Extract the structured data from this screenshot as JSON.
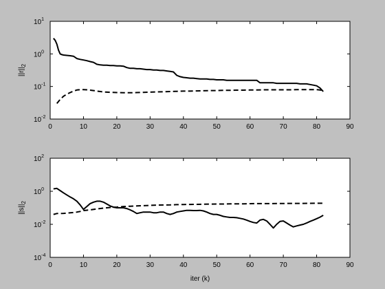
{
  "figure": {
    "background": "#c0c0c0",
    "axes_background": "#ffffff"
  },
  "chart_data": [
    {
      "type": "line",
      "title": "",
      "xlabel": "",
      "ylabel": "||r||",
      "ylabel_subscript": "2",
      "yscale": "log",
      "xlim": [
        0,
        90
      ],
      "ylim_exp": [
        -2,
        1
      ],
      "xticks": [
        "0",
        "10",
        "20",
        "30",
        "40",
        "50",
        "60",
        "70",
        "80",
        "90"
      ],
      "yticks": [
        {
          "base": "10",
          "exp": "-2"
        },
        {
          "base": "10",
          "exp": "-1"
        },
        {
          "base": "10",
          "exp": "0"
        },
        {
          "base": "10",
          "exp": "1"
        }
      ],
      "grid": false,
      "series": [
        {
          "style": "solid",
          "x": [
            1,
            1.5,
            2,
            2.5,
            3,
            3.5,
            4,
            5,
            6,
            7,
            8,
            9,
            10,
            11,
            12,
            13,
            14,
            15,
            16,
            17,
            18,
            19,
            20,
            21,
            22,
            23,
            24,
            25,
            26,
            27,
            28,
            29,
            30,
            31,
            32,
            33,
            34,
            35,
            36,
            37,
            38,
            39,
            40,
            41,
            42,
            43,
            44,
            45,
            46,
            47,
            48,
            49,
            50,
            51,
            52,
            53,
            54,
            55,
            56,
            57,
            58,
            59,
            60,
            61,
            62,
            63,
            64,
            65,
            66,
            67,
            68,
            69,
            70,
            71,
            72,
            73,
            74,
            75,
            76,
            77,
            78,
            79,
            80,
            81,
            82
          ],
          "y": [
            3.0,
            2.6,
            2.0,
            1.3,
            1.0,
            0.95,
            0.92,
            0.9,
            0.88,
            0.85,
            0.72,
            0.68,
            0.65,
            0.62,
            0.58,
            0.55,
            0.48,
            0.46,
            0.45,
            0.45,
            0.44,
            0.44,
            0.43,
            0.43,
            0.42,
            0.38,
            0.36,
            0.36,
            0.35,
            0.35,
            0.34,
            0.33,
            0.33,
            0.32,
            0.32,
            0.31,
            0.31,
            0.3,
            0.29,
            0.28,
            0.22,
            0.2,
            0.19,
            0.185,
            0.18,
            0.18,
            0.175,
            0.17,
            0.17,
            0.17,
            0.165,
            0.165,
            0.16,
            0.16,
            0.16,
            0.155,
            0.155,
            0.155,
            0.155,
            0.155,
            0.155,
            0.155,
            0.155,
            0.155,
            0.155,
            0.13,
            0.13,
            0.13,
            0.13,
            0.13,
            0.125,
            0.125,
            0.125,
            0.125,
            0.125,
            0.125,
            0.125,
            0.12,
            0.12,
            0.12,
            0.115,
            0.11,
            0.105,
            0.09,
            0.07
          ]
        },
        {
          "style": "dashed",
          "x": [
            2,
            3,
            4,
            5,
            6,
            7,
            8,
            9,
            10,
            11,
            12,
            13,
            14,
            16,
            18,
            20,
            22,
            24,
            26,
            28,
            30,
            32,
            34,
            36,
            38,
            40,
            42,
            44,
            46,
            48,
            50,
            52,
            54,
            56,
            58,
            60,
            62,
            64,
            66,
            68,
            70,
            72,
            74,
            76,
            78,
            80,
            81,
            82
          ],
          "y": [
            0.03,
            0.04,
            0.05,
            0.058,
            0.065,
            0.072,
            0.078,
            0.08,
            0.08,
            0.079,
            0.077,
            0.075,
            0.072,
            0.068,
            0.066,
            0.065,
            0.064,
            0.064,
            0.065,
            0.066,
            0.067,
            0.068,
            0.069,
            0.07,
            0.071,
            0.072,
            0.072,
            0.073,
            0.074,
            0.075,
            0.075,
            0.076,
            0.076,
            0.077,
            0.077,
            0.078,
            0.078,
            0.079,
            0.079,
            0.079,
            0.079,
            0.079,
            0.08,
            0.08,
            0.08,
            0.08,
            0.078,
            0.075
          ]
        }
      ]
    },
    {
      "type": "line",
      "title": "",
      "xlabel": "iter (k)",
      "ylabel": "||s||",
      "ylabel_subscript": "2",
      "yscale": "log",
      "xlim": [
        0,
        90
      ],
      "ylim_exp": [
        -4,
        2
      ],
      "xticks": [
        "0",
        "10",
        "20",
        "30",
        "40",
        "50",
        "60",
        "70",
        "80",
        "90"
      ],
      "yticks": [
        {
          "base": "10",
          "exp": "-4"
        },
        {
          "base": "10",
          "exp": "-2"
        },
        {
          "base": "10",
          "exp": "0"
        },
        {
          "base": "10",
          "exp": "2"
        }
      ],
      "grid": false,
      "series": [
        {
          "style": "solid",
          "x": [
            1,
            2,
            3,
            4,
            5,
            6,
            7,
            8,
            9,
            10,
            11,
            12,
            13,
            14,
            15,
            16,
            17,
            18,
            19,
            20,
            21,
            22,
            23,
            24,
            25,
            26,
            27,
            28,
            29,
            30,
            31,
            32,
            33,
            34,
            35,
            36,
            37,
            38,
            39,
            40,
            41,
            42,
            43,
            44,
            45,
            46,
            47,
            48,
            49,
            50,
            51,
            52,
            53,
            54,
            55,
            56,
            57,
            58,
            59,
            60,
            61,
            62,
            63,
            64,
            65,
            66,
            67,
            68,
            69,
            70,
            71,
            72,
            73,
            74,
            75,
            76,
            77,
            78,
            79,
            80,
            81,
            82
          ],
          "y": [
            1.4,
            1.5,
            1.1,
            0.8,
            0.6,
            0.45,
            0.35,
            0.25,
            0.15,
            0.08,
            0.12,
            0.18,
            0.22,
            0.25,
            0.25,
            0.22,
            0.17,
            0.13,
            0.11,
            0.1,
            0.1,
            0.1,
            0.09,
            0.075,
            0.06,
            0.045,
            0.05,
            0.055,
            0.055,
            0.055,
            0.05,
            0.05,
            0.055,
            0.055,
            0.045,
            0.04,
            0.045,
            0.055,
            0.06,
            0.065,
            0.07,
            0.07,
            0.068,
            0.068,
            0.07,
            0.065,
            0.055,
            0.045,
            0.04,
            0.04,
            0.035,
            0.03,
            0.028,
            0.026,
            0.026,
            0.025,
            0.023,
            0.021,
            0.018,
            0.015,
            0.013,
            0.012,
            0.018,
            0.02,
            0.016,
            0.01,
            0.006,
            0.01,
            0.015,
            0.016,
            0.012,
            0.009,
            0.007,
            0.008,
            0.009,
            0.01,
            0.012,
            0.015,
            0.018,
            0.022,
            0.027,
            0.035
          ]
        },
        {
          "style": "dashed",
          "x": [
            1,
            2,
            3,
            4,
            5,
            6,
            7,
            8,
            9,
            10,
            12,
            14,
            16,
            18,
            20,
            22,
            24,
            26,
            28,
            30,
            32,
            34,
            36,
            38,
            40,
            42,
            44,
            46,
            48,
            50,
            52,
            54,
            56,
            58,
            60,
            62,
            64,
            66,
            68,
            70,
            72,
            74,
            76,
            78,
            80,
            82
          ],
          "y": [
            0.04,
            0.045,
            0.045,
            0.046,
            0.048,
            0.05,
            0.052,
            0.055,
            0.06,
            0.068,
            0.075,
            0.085,
            0.095,
            0.105,
            0.11,
            0.12,
            0.125,
            0.13,
            0.135,
            0.14,
            0.145,
            0.148,
            0.15,
            0.155,
            0.158,
            0.16,
            0.162,
            0.165,
            0.168,
            0.17,
            0.17,
            0.172,
            0.175,
            0.175,
            0.178,
            0.18,
            0.18,
            0.18,
            0.182,
            0.182,
            0.185,
            0.185,
            0.185,
            0.186,
            0.188,
            0.19
          ]
        }
      ]
    }
  ]
}
